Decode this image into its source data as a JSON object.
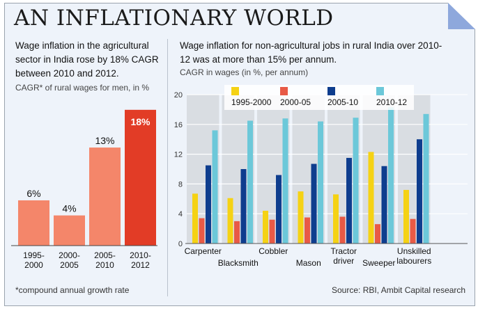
{
  "title": "AN INFLATIONARY WORLD",
  "left": {
    "subtitle": "Wage inflation in the agricultural sector in India rose by 18% CAGR between 2010 and 2012.",
    "note": "CAGR* of rural wages for men, in %",
    "footnote": "*compound annual growth rate"
  },
  "right": {
    "subtitle": "Wage inflation for non-agricultural jobs in rural India over 2010-12 was at  more than 15% per annum.",
    "note": "CAGR in wages (in %, per annum)",
    "source": "Source: RBI, Ambit Capital research"
  },
  "colors": {
    "bar_light": "#f4866a",
    "bar_dark": "#e23c26",
    "s1": "#f5d214",
    "s2": "#e85a46",
    "s3": "#0e3d8e",
    "s4": "#6cc8d9",
    "column_bg": "#d9dde2"
  },
  "chart_data": [
    {
      "type": "bar",
      "categories": [
        "1995-\n2000",
        "2000-\n2005",
        "2005-\n2010",
        "2010-\n2012"
      ],
      "values": [
        6,
        4,
        13,
        18
      ],
      "value_labels": [
        "6%",
        "4%",
        "13%",
        "18%"
      ],
      "ylim": [
        0,
        19
      ]
    },
    {
      "type": "bar",
      "categories": [
        "Carpenter",
        "Blacksmith",
        "Cobbler",
        "Mason",
        "Tractor\ndriver",
        "Sweeper",
        "Unskilled\nlabourers"
      ],
      "series": [
        {
          "name": "1995-2000",
          "values": [
            6.7,
            6.1,
            4.4,
            7.0,
            6.6,
            12.3,
            7.2
          ]
        },
        {
          "name": "2000-05",
          "values": [
            3.4,
            3.0,
            3.2,
            3.5,
            3.6,
            2.6,
            3.3
          ]
        },
        {
          "name": "2005-10",
          "values": [
            10.5,
            10.0,
            9.2,
            10.7,
            11.5,
            10.4,
            14.0
          ]
        },
        {
          "name": "2010-12",
          "values": [
            15.2,
            16.5,
            16.8,
            16.4,
            16.9,
            18.3,
            17.4
          ]
        }
      ],
      "yticks": [
        "0",
        "4",
        "8",
        "12",
        "16",
        "20"
      ],
      "ylim": [
        0,
        20
      ],
      "grid": true,
      "legend": "top"
    }
  ]
}
